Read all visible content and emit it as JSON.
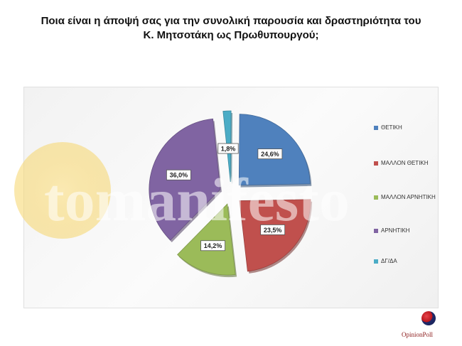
{
  "title": {
    "line1": "Ποια είναι η άποψή σας για την συνολική παρουσία και δραστηριότητα του",
    "line2": "Κ. Μητσοτάκη ως Πρωθυπουργού;"
  },
  "watermark": {
    "text": "tomanifesto"
  },
  "logo": {
    "text": "OpinionPoll"
  },
  "chart_data": {
    "type": "pie",
    "title": "Ποια είναι η άποψή σας για την συνολική παρουσία και δραστηριότητα του Κ. Μητσοτάκη ως Πρωθυπουργού;",
    "categories": [
      "ΘΕΤΙΚΗ",
      "ΜΑΛΛΟΝ ΘΕΤΙΚΗ",
      "ΜΑΛΛΟΝ ΑΡΝΗΤΙΚΗ",
      "ΑΡΝΗΤΙΚΗ",
      "ΔΓ/ΔΑ"
    ],
    "values": [
      24.6,
      23.5,
      14.2,
      36.0,
      1.8
    ],
    "labels": [
      "24,6%",
      "23,5%",
      "14,2%",
      "36,0%",
      "1,8%"
    ],
    "colors": [
      "#4f81bd",
      "#c0504d",
      "#9bbb59",
      "#8064a2",
      "#4bacc6"
    ],
    "legend_position": "right",
    "exploded": true
  }
}
